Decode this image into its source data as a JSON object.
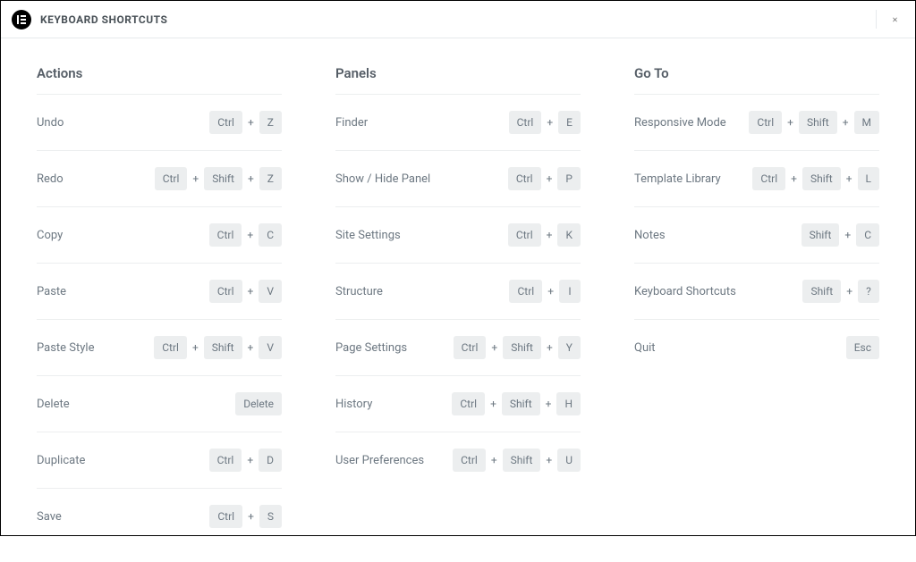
{
  "header": {
    "title": "KEYBOARD SHORTCUTS"
  },
  "columns": [
    {
      "title": "Actions",
      "items": [
        {
          "label": "Undo",
          "keys": [
            "Ctrl",
            "Z"
          ]
        },
        {
          "label": "Redo",
          "keys": [
            "Ctrl",
            "Shift",
            "Z"
          ]
        },
        {
          "label": "Copy",
          "keys": [
            "Ctrl",
            "C"
          ]
        },
        {
          "label": "Paste",
          "keys": [
            "Ctrl",
            "V"
          ]
        },
        {
          "label": "Paste Style",
          "keys": [
            "Ctrl",
            "Shift",
            "V"
          ]
        },
        {
          "label": "Delete",
          "keys": [
            "Delete"
          ]
        },
        {
          "label": "Duplicate",
          "keys": [
            "Ctrl",
            "D"
          ]
        },
        {
          "label": "Save",
          "keys": [
            "Ctrl",
            "S"
          ]
        }
      ]
    },
    {
      "title": "Panels",
      "items": [
        {
          "label": "Finder",
          "keys": [
            "Ctrl",
            "E"
          ]
        },
        {
          "label": "Show / Hide Panel",
          "keys": [
            "Ctrl",
            "P"
          ]
        },
        {
          "label": "Site Settings",
          "keys": [
            "Ctrl",
            "K"
          ]
        },
        {
          "label": "Structure",
          "keys": [
            "Ctrl",
            "I"
          ]
        },
        {
          "label": "Page Settings",
          "keys": [
            "Ctrl",
            "Shift",
            "Y"
          ]
        },
        {
          "label": "History",
          "keys": [
            "Ctrl",
            "Shift",
            "H"
          ]
        },
        {
          "label": "User Preferences",
          "keys": [
            "Ctrl",
            "Shift",
            "U"
          ]
        }
      ]
    },
    {
      "title": "Go To",
      "items": [
        {
          "label": "Responsive Mode",
          "keys": [
            "Ctrl",
            "Shift",
            "M"
          ]
        },
        {
          "label": "Template Library",
          "keys": [
            "Ctrl",
            "Shift",
            "L"
          ]
        },
        {
          "label": "Notes",
          "keys": [
            "Shift",
            "C"
          ]
        },
        {
          "label": "Keyboard Shortcuts",
          "keys": [
            "Shift",
            "?"
          ]
        },
        {
          "label": "Quit",
          "keys": [
            "Esc"
          ]
        }
      ]
    }
  ],
  "styling": {
    "background_color": "#ffffff",
    "border_color": "#eceeef",
    "text_color": "#6d7882",
    "title_color": "#555d66",
    "key_bg": "#eceeef",
    "key_text": "#6d7882",
    "header_border": "#e6e9ec",
    "font_size_label": 13,
    "font_size_title": 15,
    "font_size_key": 12
  }
}
